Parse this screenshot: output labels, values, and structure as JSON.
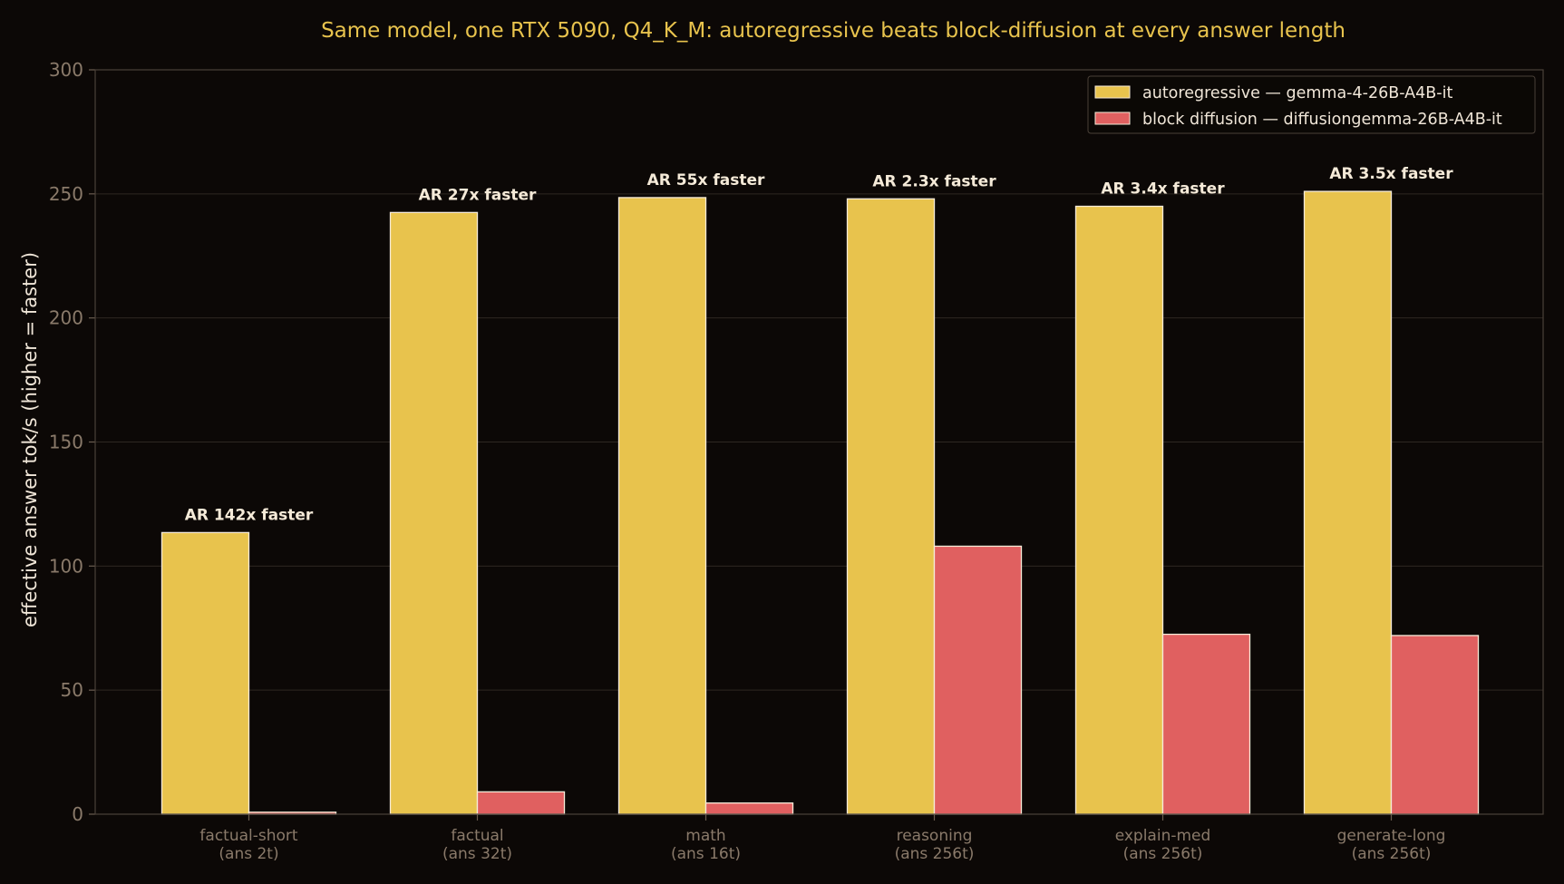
{
  "chart_data": {
    "type": "bar",
    "title": "Same model, one RTX 5090, Q4_K_M: autoregressive beats block-diffusion at every answer length",
    "ylabel": "effective answer tok/s  (higher = faster)",
    "xlabel": "",
    "ylim": [
      0,
      300
    ],
    "yticks": [
      0,
      50,
      100,
      150,
      200,
      250,
      300
    ],
    "grid": true,
    "legend_position": "top-right",
    "categories": [
      [
        "factual-short",
        "(ans 2t)"
      ],
      [
        "factual",
        "(ans 32t)"
      ],
      [
        "math",
        "(ans 16t)"
      ],
      [
        "reasoning",
        "(ans 256t)"
      ],
      [
        "explain-med",
        "(ans 256t)"
      ],
      [
        "generate-long",
        "(ans 256t)"
      ]
    ],
    "series": [
      {
        "name": "autoregressive — gemma-4-26B-A4B-it",
        "color": "#e8c34d",
        "values": [
          113.5,
          242.5,
          248.5,
          248,
          245,
          251
        ]
      },
      {
        "name": "block diffusion — diffusiongemma-26B-A4B-it",
        "color": "#e06060",
        "values": [
          0.8,
          9,
          4.5,
          108,
          72.5,
          72
        ]
      }
    ],
    "annotations": [
      "AR 142x faster",
      "AR 27x faster",
      "AR 55x faster",
      "AR 2.3x faster",
      "AR 3.4x faster",
      "AR 3.5x faster"
    ],
    "colors": {
      "background": "#0c0806",
      "title": "#e8c34d",
      "axis": "#4a4038",
      "grid": "#2e2722",
      "bar_edge": "#f5ead8"
    }
  }
}
